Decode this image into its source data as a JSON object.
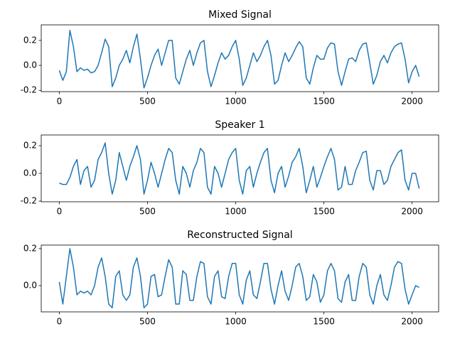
{
  "chart_data": [
    {
      "type": "line",
      "title": "Mixed Signal",
      "x": [
        0,
        20,
        40,
        60,
        80,
        100,
        120,
        140,
        160,
        180,
        200,
        220,
        240,
        260,
        280,
        300,
        320,
        340,
        360,
        380,
        400,
        420,
        440,
        460,
        480,
        500,
        520,
        540,
        560,
        580,
        600,
        620,
        640,
        660,
        680,
        700,
        720,
        740,
        760,
        780,
        800,
        820,
        840,
        860,
        880,
        900,
        920,
        940,
        960,
        980,
        1000,
        1020,
        1040,
        1060,
        1080,
        1100,
        1120,
        1140,
        1160,
        1180,
        1200,
        1220,
        1240,
        1260,
        1280,
        1300,
        1320,
        1340,
        1360,
        1380,
        1400,
        1420,
        1440,
        1460,
        1480,
        1500,
        1520,
        1540,
        1560,
        1580,
        1600,
        1620,
        1640,
        1660,
        1680,
        1700,
        1720,
        1740,
        1760,
        1780,
        1800,
        1820,
        1840,
        1860,
        1880,
        1900,
        1920,
        1940,
        1960,
        1980,
        2000,
        2020,
        2040
      ],
      "series": [
        {
          "color": "#1f77b4",
          "values": [
            -0.04,
            -0.12,
            -0.05,
            0.28,
            0.15,
            -0.05,
            -0.02,
            -0.04,
            -0.03,
            -0.06,
            -0.05,
            0.0,
            0.1,
            0.21,
            0.15,
            -0.17,
            -0.1,
            0.0,
            0.05,
            0.12,
            0.02,
            0.15,
            0.25,
            0.05,
            -0.18,
            -0.1,
            0.0,
            0.08,
            0.13,
            0.0,
            0.1,
            0.2,
            0.2,
            -0.1,
            -0.15,
            -0.05,
            0.05,
            0.12,
            0.0,
            0.1,
            0.18,
            0.2,
            -0.05,
            -0.17,
            -0.08,
            0.02,
            0.1,
            0.05,
            0.08,
            0.15,
            0.2,
            0.05,
            -0.16,
            -0.1,
            0.0,
            0.1,
            0.03,
            0.08,
            0.15,
            0.2,
            0.08,
            -0.15,
            -0.12,
            0.0,
            0.1,
            0.03,
            0.08,
            0.14,
            0.19,
            0.15,
            -0.1,
            -0.15,
            -0.02,
            0.08,
            0.05,
            0.05,
            0.14,
            0.18,
            0.17,
            -0.05,
            -0.16,
            -0.05,
            0.05,
            0.06,
            0.03,
            0.12,
            0.17,
            0.18,
            0.02,
            -0.15,
            -0.08,
            0.03,
            0.08,
            0.02,
            0.1,
            0.15,
            0.17,
            0.18,
            0.05,
            -0.14,
            -0.05,
            0.0,
            -0.09
          ]
        }
      ],
      "xlim": [
        -102.4,
        2150.4
      ],
      "xticks": [
        0,
        500,
        1000,
        1500,
        2000
      ],
      "ylim": [
        -0.21,
        0.324
      ],
      "yticks": [
        -0.2,
        {
          "value": 0,
          "label": "0.0"
        },
        0.2
      ]
    },
    {
      "type": "line",
      "title": "Speaker 1",
      "x": [
        0,
        20,
        40,
        60,
        80,
        100,
        120,
        140,
        160,
        180,
        200,
        220,
        240,
        260,
        280,
        300,
        320,
        340,
        360,
        380,
        400,
        420,
        440,
        460,
        480,
        500,
        520,
        540,
        560,
        580,
        600,
        620,
        640,
        660,
        680,
        700,
        720,
        740,
        760,
        780,
        800,
        820,
        840,
        860,
        880,
        900,
        920,
        940,
        960,
        980,
        1000,
        1020,
        1040,
        1060,
        1080,
        1100,
        1120,
        1140,
        1160,
        1180,
        1200,
        1220,
        1240,
        1260,
        1280,
        1300,
        1320,
        1340,
        1360,
        1380,
        1400,
        1420,
        1440,
        1460,
        1480,
        1500,
        1520,
        1540,
        1560,
        1580,
        1600,
        1620,
        1640,
        1660,
        1680,
        1700,
        1720,
        1740,
        1760,
        1780,
        1800,
        1820,
        1840,
        1860,
        1880,
        1900,
        1920,
        1940,
        1960,
        1980,
        2000,
        2020,
        2040
      ],
      "series": [
        {
          "color": "#1f77b4",
          "values": [
            -0.07,
            -0.08,
            -0.08,
            -0.03,
            0.05,
            0.1,
            -0.08,
            0.02,
            0.05,
            -0.1,
            -0.05,
            0.1,
            0.15,
            0.22,
            0.0,
            -0.15,
            -0.05,
            0.15,
            0.05,
            -0.05,
            0.05,
            0.12,
            0.2,
            0.1,
            -0.15,
            -0.05,
            0.08,
            0.0,
            -0.1,
            0.0,
            0.1,
            0.18,
            0.15,
            -0.05,
            -0.15,
            0.05,
            0.0,
            -0.1,
            0.02,
            0.08,
            0.18,
            0.15,
            -0.1,
            -0.15,
            0.05,
            0.0,
            -0.1,
            0.0,
            0.1,
            0.15,
            0.18,
            -0.05,
            -0.15,
            0.02,
            0.05,
            -0.1,
            0.0,
            0.08,
            0.15,
            0.18,
            -0.05,
            -0.14,
            0.0,
            0.05,
            -0.1,
            -0.02,
            0.08,
            0.12,
            0.18,
            0.05,
            -0.14,
            -0.05,
            0.05,
            -0.1,
            -0.03,
            0.05,
            0.12,
            0.18,
            0.1,
            -0.12,
            -0.1,
            0.05,
            -0.08,
            -0.08,
            0.02,
            0.08,
            0.15,
            0.16,
            -0.05,
            -0.12,
            0.02,
            0.02,
            -0.08,
            -0.05,
            0.05,
            0.1,
            0.15,
            0.17,
            -0.05,
            -0.12,
            0.0,
            0.0,
            -0.11
          ]
        }
      ],
      "xlim": [
        -102.4,
        2150.4
      ],
      "xticks": [
        0,
        500,
        1000,
        1500,
        2000
      ],
      "ylim": [
        -0.205,
        0.277
      ],
      "yticks": [
        -0.2,
        {
          "value": 0,
          "label": "0.0"
        },
        0.2
      ]
    },
    {
      "type": "line",
      "title": "Reconstructed Signal",
      "x": [
        0,
        20,
        40,
        60,
        80,
        100,
        120,
        140,
        160,
        180,
        200,
        220,
        240,
        260,
        280,
        300,
        320,
        340,
        360,
        380,
        400,
        420,
        440,
        460,
        480,
        500,
        520,
        540,
        560,
        580,
        600,
        620,
        640,
        660,
        680,
        700,
        720,
        740,
        760,
        780,
        800,
        820,
        840,
        860,
        880,
        900,
        920,
        940,
        960,
        980,
        1000,
        1020,
        1040,
        1060,
        1080,
        1100,
        1120,
        1140,
        1160,
        1180,
        1200,
        1220,
        1240,
        1260,
        1280,
        1300,
        1320,
        1340,
        1360,
        1380,
        1400,
        1420,
        1440,
        1460,
        1480,
        1500,
        1520,
        1540,
        1560,
        1580,
        1600,
        1620,
        1640,
        1660,
        1680,
        1700,
        1720,
        1740,
        1760,
        1780,
        1800,
        1820,
        1840,
        1860,
        1880,
        1900,
        1920,
        1940,
        1960,
        1980,
        2000,
        2020,
        2040
      ],
      "series": [
        {
          "color": "#1f77b4",
          "values": [
            0.02,
            -0.1,
            0.05,
            0.2,
            0.1,
            -0.05,
            -0.03,
            -0.04,
            -0.03,
            -0.05,
            0.0,
            0.1,
            0.15,
            0.05,
            -0.1,
            -0.12,
            0.05,
            0.08,
            -0.05,
            -0.08,
            -0.05,
            0.1,
            0.15,
            0.05,
            -0.12,
            -0.1,
            0.05,
            0.06,
            -0.06,
            -0.05,
            0.05,
            0.14,
            0.1,
            -0.1,
            -0.1,
            0.08,
            0.06,
            -0.08,
            -0.08,
            0.05,
            0.13,
            0.12,
            -0.06,
            -0.1,
            0.05,
            0.08,
            -0.06,
            -0.07,
            0.05,
            0.12,
            0.12,
            -0.05,
            -0.1,
            0.03,
            0.08,
            -0.05,
            -0.07,
            0.02,
            0.12,
            0.12,
            -0.02,
            -0.1,
            0.0,
            0.08,
            -0.03,
            -0.08,
            0.0,
            0.1,
            0.12,
            0.05,
            -0.08,
            -0.06,
            0.06,
            0.02,
            -0.09,
            -0.05,
            0.08,
            0.12,
            0.08,
            -0.07,
            -0.09,
            0.02,
            0.06,
            -0.08,
            -0.08,
            0.05,
            0.12,
            0.1,
            -0.05,
            -0.1,
            0.0,
            0.06,
            -0.05,
            -0.08,
            0.0,
            0.1,
            0.13,
            0.12,
            -0.02,
            -0.1,
            -0.05,
            0.0,
            -0.01
          ]
        }
      ],
      "xlim": [
        -102.4,
        2150.4
      ],
      "xticks": [
        0,
        500,
        1000,
        1500,
        2000
      ],
      "ylim": [
        -0.142,
        0.219
      ],
      "yticks": [
        {
          "value": 0,
          "label": "0.0"
        },
        0.2
      ]
    }
  ]
}
